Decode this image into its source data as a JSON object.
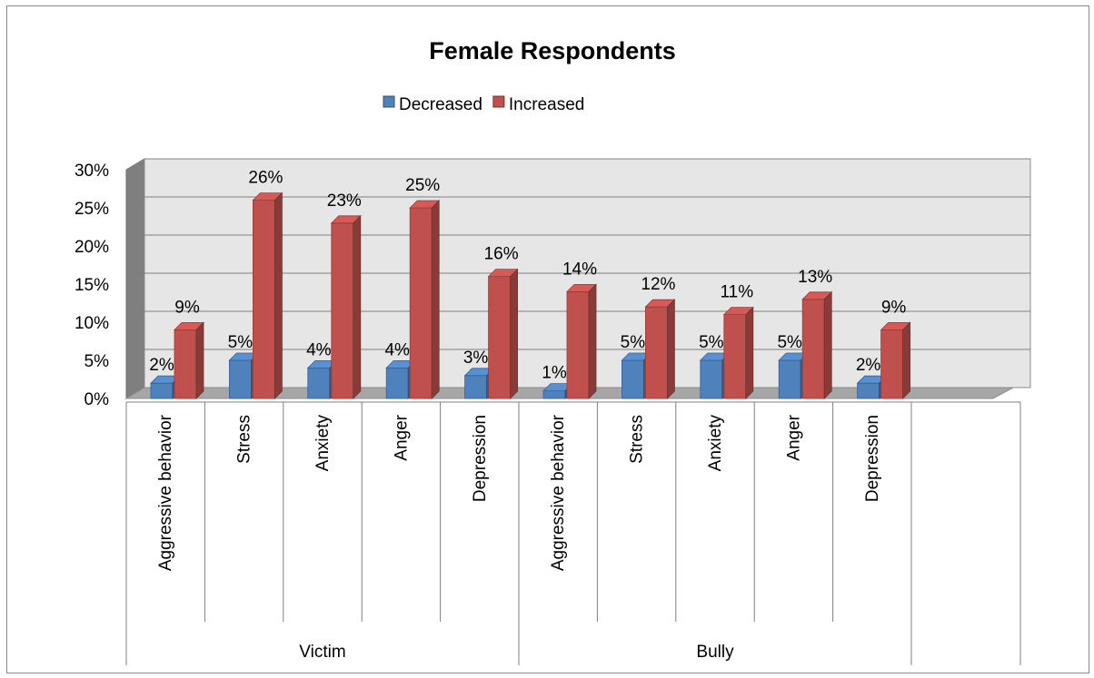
{
  "chart_data": {
    "type": "bar",
    "title": "Female Respondents",
    "groups": [
      {
        "name": "Victim",
        "categories": [
          "Aggressive behavior",
          "Stress",
          "Anxiety",
          "Anger",
          "Depression"
        ]
      },
      {
        "name": "Bully",
        "categories": [
          "Aggressive behavior",
          "Stress",
          "Anxiety",
          "Anger",
          "Depression"
        ]
      }
    ],
    "categories": [
      "Aggressive behavior",
      "Stress",
      "Anxiety",
      "Anger",
      "Depression",
      "Aggressive behavior",
      "Stress",
      "Anxiety",
      "Anger",
      "Depression"
    ],
    "series": [
      {
        "name": "Decreased",
        "color": "#4f81bd",
        "values": [
          2,
          5,
          4,
          4,
          3,
          1,
          5,
          5,
          5,
          2
        ],
        "labels": [
          "2%",
          "5%",
          "4%",
          "4%",
          "3%",
          "1%",
          "5%",
          "5%",
          "5%",
          "2%"
        ]
      },
      {
        "name": "Increased",
        "color": "#c0504d",
        "values": [
          9,
          26,
          23,
          25,
          16,
          14,
          12,
          11,
          13,
          9
        ],
        "labels": [
          "9%",
          "26%",
          "23%",
          "25%",
          "16%",
          "14%",
          "12%",
          "11%",
          "13%",
          "9%"
        ]
      }
    ],
    "y_ticks": [
      "0%",
      "5%",
      "10%",
      "15%",
      "20%",
      "25%",
      "30%"
    ],
    "ylim": [
      0,
      30
    ],
    "grid": true,
    "legend_position": "top"
  }
}
